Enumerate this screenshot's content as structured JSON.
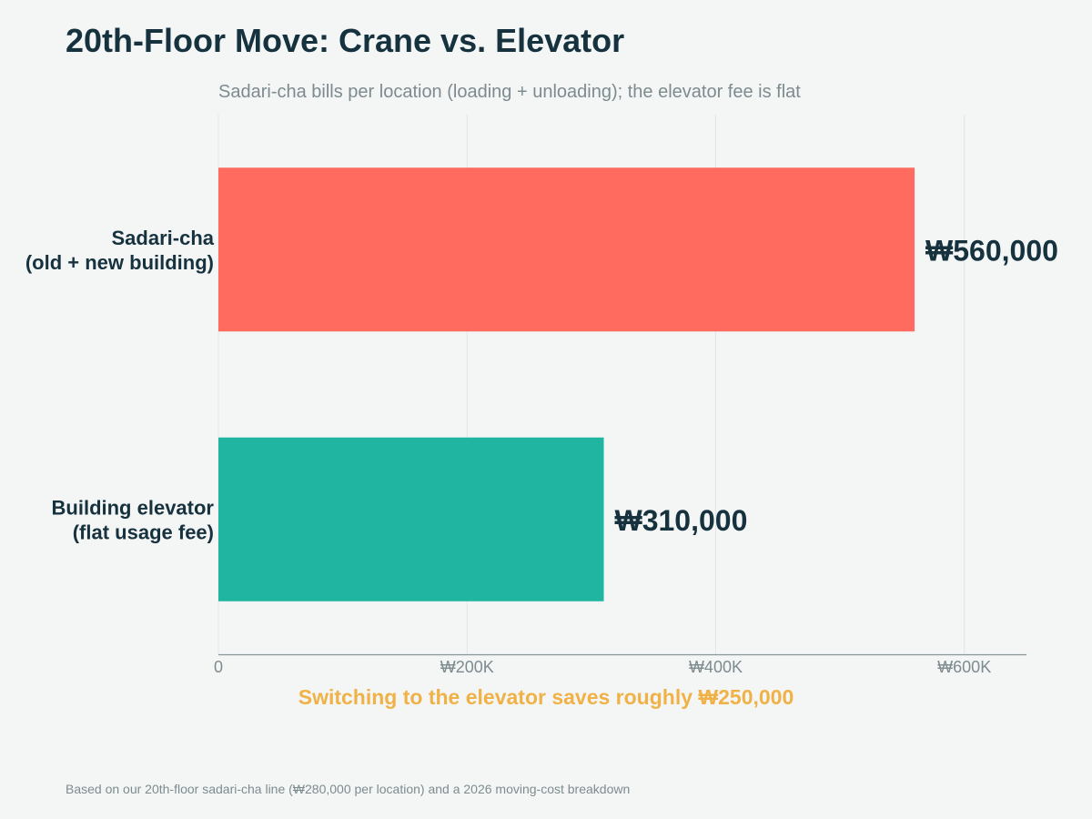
{
  "title": "20th-Floor Move: Crane vs. Elevator",
  "footnote": "Based on our 20th-floor sadari-cha line (₩280,000 per location) and a 2026 moving-cost breakdown",
  "chart_data": {
    "type": "bar",
    "orientation": "horizontal",
    "subtitle": "Sadari-cha bills per location (loading + unloading); the elevator fee is flat",
    "categories": [
      [
        "Sadari-cha",
        "(old + new building)"
      ],
      [
        "Building elevator",
        "(flat usage fee)"
      ]
    ],
    "values": [
      560000,
      310000
    ],
    "value_labels": [
      "₩560,000",
      "₩310,000"
    ],
    "colors": [
      "#ff6b5e",
      "#20b5a1"
    ],
    "xlim": [
      0,
      650000
    ],
    "xticks": [
      0,
      200000,
      400000,
      600000
    ],
    "xtick_labels": [
      "0",
      "₩200K",
      "₩400K",
      "₩600K"
    ],
    "xlabel": "",
    "ylabel": "",
    "grid": true,
    "annotation": "Switching to the elevator saves roughly ₩250,000",
    "annotation_color": "#f0b247",
    "grid_color": "#e2e5e5",
    "axis_color": "#8a9598",
    "tick_label_color": "#7d8b8f",
    "label_color": "#17323f"
  }
}
